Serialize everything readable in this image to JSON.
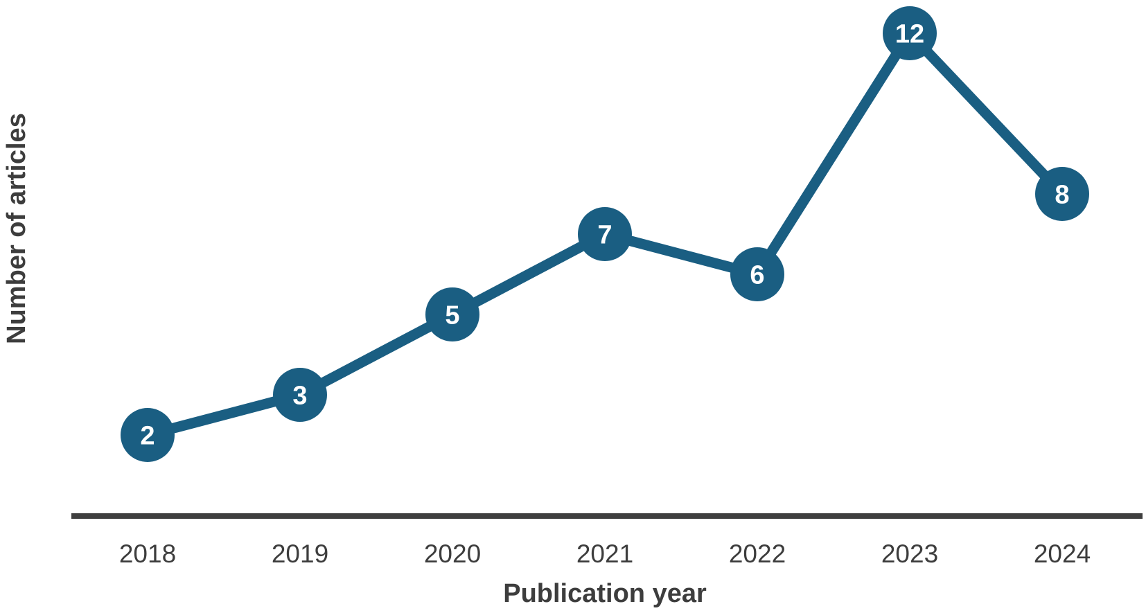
{
  "figure": {
    "background_color": "#ffffff"
  },
  "chart_data": {
    "type": "line",
    "title": "",
    "xlabel": "Publication year",
    "ylabel": "Number of articles",
    "categories": [
      "2018",
      "2019",
      "2020",
      "2021",
      "2022",
      "2023",
      "2024"
    ],
    "values": [
      2,
      3,
      5,
      7,
      6,
      12,
      8
    ],
    "ylim": [
      0,
      12.9
    ],
    "grid": false,
    "legend": "none",
    "marker_style": "filled-circle-with-value-label",
    "data_labels_visible": true,
    "colors": {
      "series": "#1a5e82",
      "marker_label_text": "#ffffff",
      "axis_line": "#3f3f3f",
      "axis_text": "#3d3d3d"
    }
  }
}
